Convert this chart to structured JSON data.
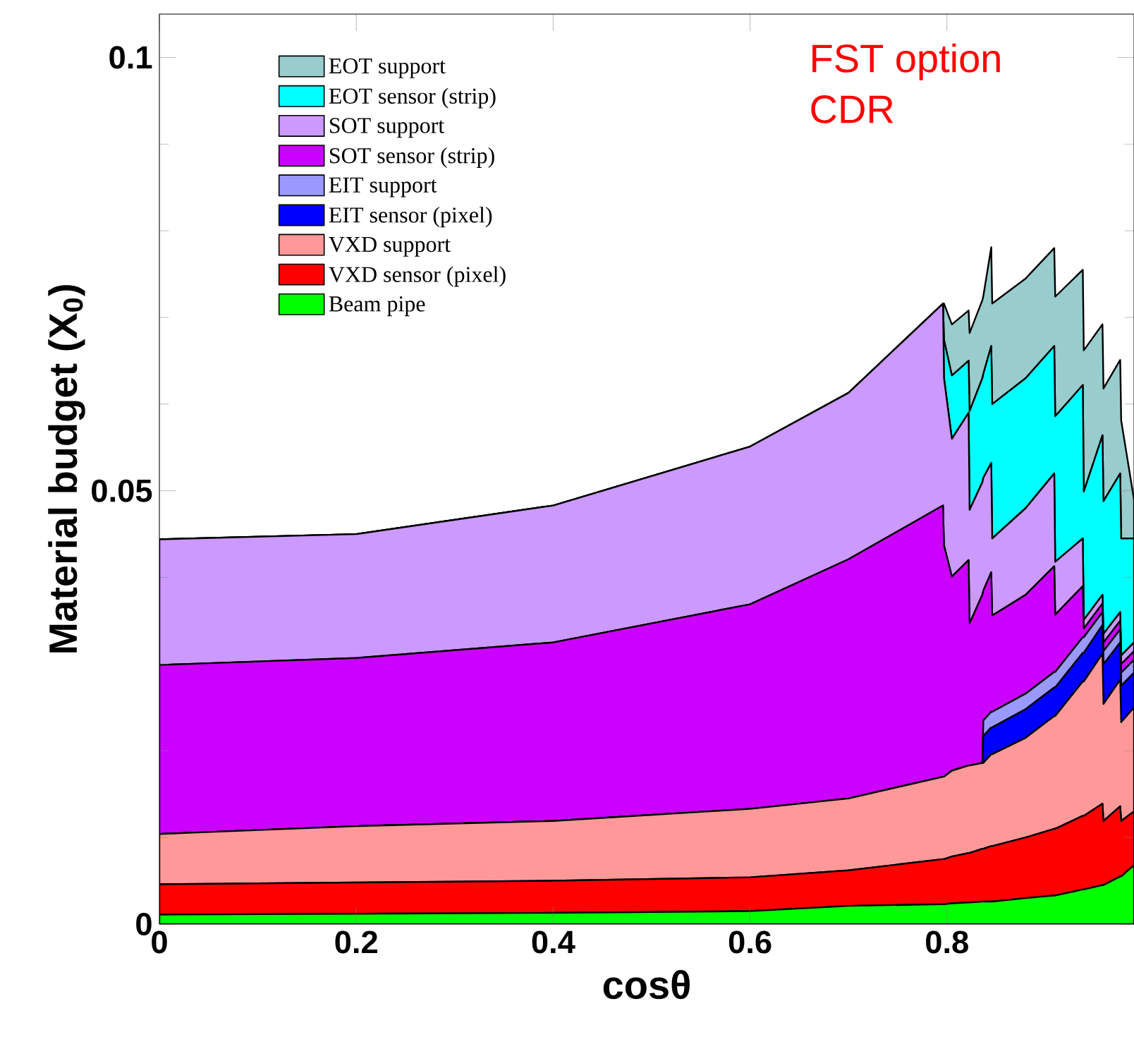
{
  "chart_data": {
    "type": "area",
    "stacked": true,
    "xlabel": "cosθ",
    "ylabel": "Material budget (X$_{0}$)",
    "annotations": [
      "FST option",
      "CDR"
    ],
    "xlim": [
      0,
      0.99
    ],
    "ylim": [
      0,
      0.105
    ],
    "xticks": [
      0,
      0.2,
      0.4,
      0.6,
      0.8
    ],
    "yticks": [
      0,
      {
        "value": 0.01,
        "label": null
      },
      {
        "value": 0.02,
        "label": null
      },
      {
        "value": 0.03,
        "label": null
      },
      {
        "value": 0.04,
        "label": null
      },
      0.05,
      {
        "value": 0.06,
        "label": null
      },
      {
        "value": 0.07,
        "label": null
      },
      {
        "value": 0.08,
        "label": null
      },
      {
        "value": 0.09,
        "label": null
      },
      0.1
    ],
    "legend": "top left",
    "x": [
      0,
      0.2,
      0.4,
      0.6,
      0.7,
      0.796,
      0.797,
      0.805,
      0.822,
      0.823,
      0.836,
      0.837,
      0.845,
      0.846,
      0.88,
      0.909,
      0.91,
      0.938,
      0.939,
      0.958,
      0.959,
      0.976,
      0.977,
      0.99
    ],
    "series": [
      {
        "name": "Beam pipe",
        "color": "#00ff00",
        "values": [
          0.0011,
          0.0012,
          0.0013,
          0.0015,
          0.0021,
          0.0023,
          0.0023,
          0.0024,
          0.0025,
          0.0025,
          0.0026,
          0.0026,
          0.0026,
          0.0026,
          0.003,
          0.0033,
          0.0033,
          0.004,
          0.004,
          0.0045,
          0.0045,
          0.0055,
          0.0055,
          0.0068
        ]
      },
      {
        "name": "VXD sensor (pixel)",
        "color": "#ff0000",
        "values": [
          0.0035,
          0.0036,
          0.0037,
          0.0039,
          0.0041,
          0.0052,
          0.0052,
          0.0054,
          0.0057,
          0.0057,
          0.0061,
          0.0061,
          0.0064,
          0.0064,
          0.007,
          0.0077,
          0.0077,
          0.0085,
          0.0085,
          0.0094,
          0.0074,
          0.0081,
          0.0064,
          0.0062
        ]
      },
      {
        "name": "VXD support",
        "color": "#ff9999",
        "values": [
          0.0058,
          0.0065,
          0.0069,
          0.0079,
          0.0083,
          0.0095,
          0.0095,
          0.0099,
          0.0101,
          0.0101,
          0.0099,
          0.0099,
          0.0106,
          0.0106,
          0.0115,
          0.013,
          0.013,
          0.0155,
          0.0155,
          0.0173,
          0.0135,
          0.0146,
          0.0114,
          0.012
        ]
      },
      {
        "name": "EIT sensor (pixel)",
        "color": "#0000ff",
        "values": [
          0,
          0,
          0,
          0,
          0,
          0,
          0,
          0,
          0,
          0,
          0,
          0.0031,
          0.0031,
          0.0031,
          0.0033,
          0.0033,
          0.0033,
          0.0033,
          0.0033,
          0.0033,
          0.0046,
          0.0043,
          0.0042,
          0.004
        ]
      },
      {
        "name": "EIT support",
        "color": "#9999ff",
        "values": [
          0,
          0,
          0,
          0,
          0,
          0,
          0,
          0,
          0,
          0,
          0,
          0.0018,
          0.0018,
          0.0018,
          0.0018,
          0.0018,
          0.0018,
          0.0018,
          0.0018,
          0.0015,
          0.0015,
          0.0015,
          0.0015,
          0.0015
        ]
      },
      {
        "name": "SOT sensor (strip)",
        "color": "#cc00ff",
        "values": [
          0.0195,
          0.0194,
          0.0206,
          0.0236,
          0.0276,
          0.0313,
          0.0267,
          0.0224,
          0.0237,
          0.0164,
          0.0194,
          0.015,
          0.0161,
          0.0111,
          0.0114,
          0.0122,
          0.0066,
          0.0059,
          0.001,
          0.001,
          0.001,
          0.001,
          0.001,
          0.001
        ]
      },
      {
        "name": "SOT support",
        "color": "#cc99ff",
        "values": [
          0.0145,
          0.0143,
          0.0158,
          0.0182,
          0.0192,
          0.0233,
          0.0193,
          0.0159,
          0.017,
          0.0131,
          0.013,
          0.013,
          0.0126,
          0.0089,
          0.01,
          0.0107,
          0.0061,
          0.0055,
          0.001,
          0.001,
          0.001,
          0.001,
          0.001,
          0.001
        ]
      },
      {
        "name": "EOT sensor (strip)",
        "color": "#00ffff",
        "values": [
          0,
          0,
          0,
          0,
          0,
          0,
          0.0044,
          0.0073,
          0.006,
          0.0114,
          0.012,
          0.012,
          0.0135,
          0.0155,
          0.015,
          0.0147,
          0.0168,
          0.0177,
          0.0148,
          0.0184,
          0.0153,
          0.016,
          0.0135,
          0.012
        ]
      },
      {
        "name": "EOT support",
        "color": "#99cccc",
        "values": [
          0,
          0,
          0,
          0,
          0,
          0,
          0.0042,
          0.0059,
          0.0058,
          0.009,
          0.009,
          0.009,
          0.0114,
          0.0116,
          0.0115,
          0.0113,
          0.0138,
          0.0133,
          0.0163,
          0.0128,
          0.013,
          0.0131,
          0.0136,
          0.0045
        ]
      }
    ]
  }
}
